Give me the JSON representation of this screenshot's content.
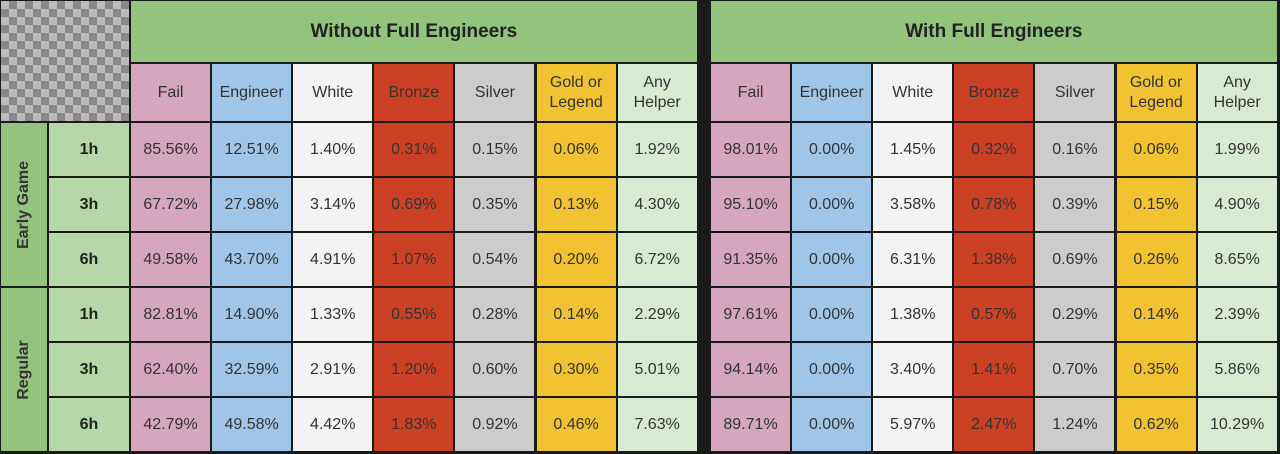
{
  "sections": [
    {
      "title": "Without Full Engineers",
      "columns": [
        "Fail",
        "Engineer",
        "White",
        "Bronze",
        "Silver",
        "Gold or Legend",
        "Any Helper"
      ],
      "rows": [
        [
          "85.56%",
          "12.51%",
          "1.40%",
          "0.31%",
          "0.15%",
          "0.06%",
          "1.92%"
        ],
        [
          "67.72%",
          "27.98%",
          "3.14%",
          "0.69%",
          "0.35%",
          "0.13%",
          "4.30%"
        ],
        [
          "49.58%",
          "43.70%",
          "4.91%",
          "1.07%",
          "0.54%",
          "0.20%",
          "6.72%"
        ],
        [
          "82.81%",
          "14.90%",
          "1.33%",
          "0.55%",
          "0.28%",
          "0.14%",
          "2.29%"
        ],
        [
          "62.40%",
          "32.59%",
          "2.91%",
          "1.20%",
          "0.60%",
          "0.30%",
          "5.01%"
        ],
        [
          "42.79%",
          "49.58%",
          "4.42%",
          "1.83%",
          "0.92%",
          "0.46%",
          "7.63%"
        ]
      ]
    },
    {
      "title": "With Full Engineers",
      "columns": [
        "Fail",
        "Engineer",
        "White",
        "Bronze",
        "Silver",
        "Gold or Legend",
        "Any Helper"
      ],
      "rows": [
        [
          "98.01%",
          "0.00%",
          "1.45%",
          "0.32%",
          "0.16%",
          "0.06%",
          "1.99%"
        ],
        [
          "95.10%",
          "0.00%",
          "3.58%",
          "0.78%",
          "0.39%",
          "0.15%",
          "4.90%"
        ],
        [
          "91.35%",
          "0.00%",
          "6.31%",
          "1.38%",
          "0.69%",
          "0.26%",
          "8.65%"
        ],
        [
          "97.61%",
          "0.00%",
          "1.38%",
          "0.57%",
          "0.29%",
          "0.14%",
          "2.39%"
        ],
        [
          "94.14%",
          "0.00%",
          "3.40%",
          "1.41%",
          "0.70%",
          "0.35%",
          "5.86%"
        ],
        [
          "89.71%",
          "0.00%",
          "5.97%",
          "2.47%",
          "1.24%",
          "0.62%",
          "10.29%"
        ]
      ]
    }
  ],
  "row_groups": [
    {
      "label": "Early Game",
      "rows": [
        "1h",
        "3h",
        "6h"
      ]
    },
    {
      "label": "Regular",
      "rows": [
        "1h",
        "3h",
        "6h"
      ]
    }
  ]
}
